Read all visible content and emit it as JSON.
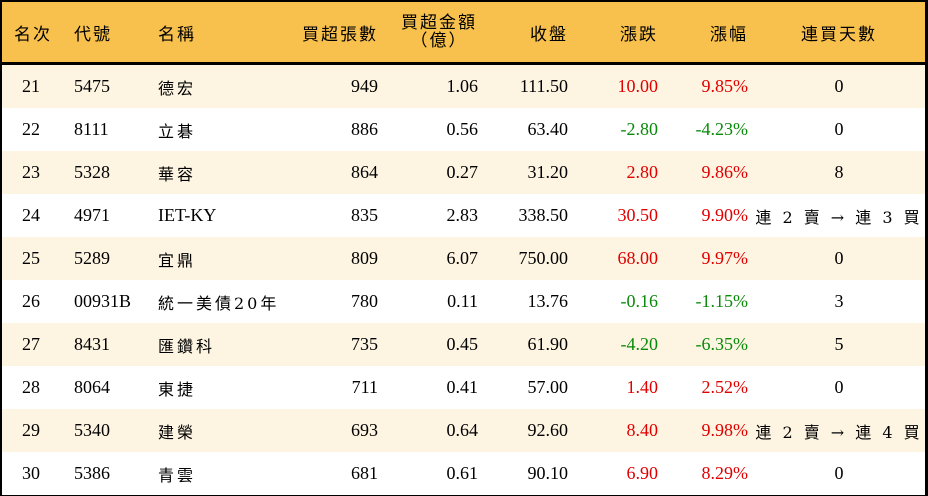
{
  "header": {
    "rank": "名次",
    "code": "代號",
    "name": "名稱",
    "net_buy_lots": "買超張數",
    "net_buy_amount_line1": "買超金額",
    "net_buy_amount_line2": "（億）",
    "close": "收盤",
    "change": "漲跌",
    "change_pct": "漲幅",
    "consecutive_days": "連買天數"
  },
  "colors": {
    "header_bg": "#F8C14E",
    "row_odd_bg": "#FDF4E2",
    "row_even_bg": "#FFFFFF",
    "up": "#E00000",
    "down": "#0A8A0A"
  },
  "rows": [
    {
      "rank": "21",
      "code": "5475",
      "name": "德宏",
      "lots": "949",
      "amount": "1.06",
      "close": "111.50",
      "change": "10.00",
      "pct": "9.85%",
      "days": "0",
      "dir": "up"
    },
    {
      "rank": "22",
      "code": "8111",
      "name": "立碁",
      "lots": "886",
      "amount": "0.56",
      "close": "63.40",
      "change": "-2.80",
      "pct": "-4.23%",
      "days": "0",
      "dir": "down"
    },
    {
      "rank": "23",
      "code": "5328",
      "name": "華容",
      "lots": "864",
      "amount": "0.27",
      "close": "31.20",
      "change": "2.80",
      "pct": "9.86%",
      "days": "8",
      "dir": "up"
    },
    {
      "rank": "24",
      "code": "4971",
      "name": "IET-KY",
      "lots": "835",
      "amount": "2.83",
      "close": "338.50",
      "change": "30.50",
      "pct": "9.90%",
      "days": "連 2 賣 → 連 3 買",
      "dir": "up"
    },
    {
      "rank": "25",
      "code": "5289",
      "name": "宜鼎",
      "lots": "809",
      "amount": "6.07",
      "close": "750.00",
      "change": "68.00",
      "pct": "9.97%",
      "days": "0",
      "dir": "up"
    },
    {
      "rank": "26",
      "code": "00931B",
      "name": "統一美債20年",
      "lots": "780",
      "amount": "0.11",
      "close": "13.76",
      "change": "-0.16",
      "pct": "-1.15%",
      "days": "3",
      "dir": "down"
    },
    {
      "rank": "27",
      "code": "8431",
      "name": "匯鑽科",
      "lots": "735",
      "amount": "0.45",
      "close": "61.90",
      "change": "-4.20",
      "pct": "-6.35%",
      "days": "5",
      "dir": "down"
    },
    {
      "rank": "28",
      "code": "8064",
      "name": "東捷",
      "lots": "711",
      "amount": "0.41",
      "close": "57.00",
      "change": "1.40",
      "pct": "2.52%",
      "days": "0",
      "dir": "up"
    },
    {
      "rank": "29",
      "code": "5340",
      "name": "建榮",
      "lots": "693",
      "amount": "0.64",
      "close": "92.60",
      "change": "8.40",
      "pct": "9.98%",
      "days": "連 2 賣 → 連 4 買",
      "dir": "up"
    },
    {
      "rank": "30",
      "code": "5386",
      "name": "青雲",
      "lots": "681",
      "amount": "0.61",
      "close": "90.10",
      "change": "6.90",
      "pct": "8.29%",
      "days": "0",
      "dir": "up"
    }
  ]
}
